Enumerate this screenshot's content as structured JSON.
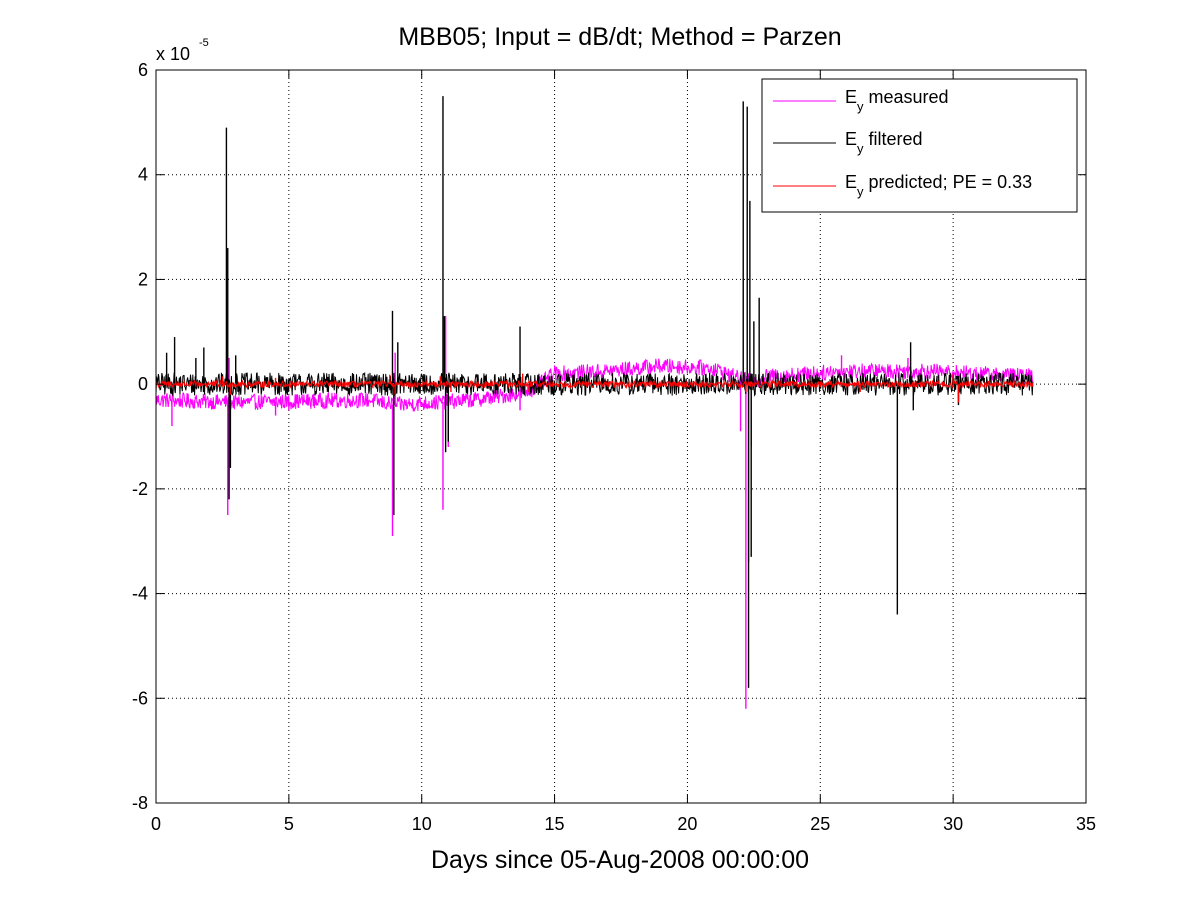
{
  "chart_data": {
    "type": "line",
    "title": "MBB05; Input = dB/dt; Method = Parzen",
    "xlabel": "Days since 05-Aug-2008 00:00:00",
    "ylabel": "",
    "xlim": [
      0,
      35
    ],
    "ylim": [
      -8,
      6
    ],
    "xticks": [
      0,
      5,
      10,
      15,
      20,
      25,
      30,
      35
    ],
    "xtick_labels": [
      "0",
      "5",
      "10",
      "15",
      "20",
      "25",
      "30",
      "35"
    ],
    "yticks": [
      -8,
      -6,
      -4,
      -2,
      0,
      2,
      4,
      6
    ],
    "ytick_labels": [
      "-8",
      "-6",
      "-4",
      "-2",
      "0",
      "2",
      "4",
      "6"
    ],
    "y_multiplier": {
      "base": "x 10",
      "exponent": "-5"
    },
    "grid": true,
    "legend_position": "top-right",
    "series": [
      {
        "name": "E_y measured",
        "legend_main": "E",
        "legend_sub": "y",
        "legend_rest": " measured",
        "color": "#ff00ff",
        "baseline": [
          [
            0,
            -0.3
          ],
          [
            3,
            -0.35
          ],
          [
            8,
            -0.3
          ],
          [
            9,
            -0.4
          ],
          [
            12,
            -0.3
          ],
          [
            14,
            -0.15
          ],
          [
            15,
            0.2
          ],
          [
            17,
            0.25
          ],
          [
            19,
            0.35
          ],
          [
            21,
            0.3
          ],
          [
            22,
            0.1
          ],
          [
            22.5,
            0.05
          ],
          [
            23,
            0.15
          ],
          [
            26,
            0.25
          ],
          [
            29,
            0.25
          ],
          [
            33,
            0.15
          ]
        ],
        "noise": 0.15,
        "spikes": [
          [
            0.6,
            -0.8
          ],
          [
            2.7,
            -2.5
          ],
          [
            2.75,
            0.5
          ],
          [
            4.5,
            -0.6
          ],
          [
            5.0,
            -0.5
          ],
          [
            8.9,
            -2.9
          ],
          [
            9.0,
            0.6
          ],
          [
            10.8,
            -2.4
          ],
          [
            10.9,
            1.3
          ],
          [
            11.0,
            -1.2
          ],
          [
            13.7,
            -0.5
          ],
          [
            22.0,
            -0.9
          ],
          [
            22.2,
            -6.2
          ],
          [
            22.3,
            -3.4
          ],
          [
            22.4,
            -1.2
          ],
          [
            25.8,
            0.55
          ],
          [
            28.3,
            0.5
          ],
          [
            30.2,
            -0.3
          ]
        ]
      },
      {
        "name": "E_y filtered",
        "legend_main": "E",
        "legend_sub": "y",
        "legend_rest": " filtered",
        "color": "#000000",
        "baseline": [
          [
            0,
            0
          ],
          [
            33,
            0
          ]
        ],
        "noise": 0.22,
        "spikes": [
          [
            0.4,
            0.6
          ],
          [
            0.7,
            0.9
          ],
          [
            1.5,
            0.5
          ],
          [
            1.8,
            0.7
          ],
          [
            2.65,
            4.9
          ],
          [
            2.7,
            2.6
          ],
          [
            2.75,
            -2.2
          ],
          [
            2.8,
            -1.6
          ],
          [
            3.0,
            0.55
          ],
          [
            8.9,
            1.4
          ],
          [
            8.95,
            -2.5
          ],
          [
            9.1,
            0.8
          ],
          [
            10.8,
            5.5
          ],
          [
            10.85,
            1.3
          ],
          [
            10.9,
            -1.3
          ],
          [
            11.0,
            -1.1
          ],
          [
            13.7,
            1.1
          ],
          [
            22.1,
            5.4
          ],
          [
            22.25,
            5.3
          ],
          [
            22.3,
            -5.8
          ],
          [
            22.35,
            3.5
          ],
          [
            22.4,
            -3.3
          ],
          [
            22.5,
            1.2
          ],
          [
            22.7,
            1.65
          ],
          [
            27.9,
            -4.4
          ],
          [
            28.4,
            0.8
          ],
          [
            28.5,
            -0.5
          ],
          [
            30.2,
            -0.4
          ]
        ]
      },
      {
        "name": "E_y predicted; PE = 0.33",
        "legend_main": "E",
        "legend_sub": "y",
        "legend_rest": " predicted; PE = 0.33",
        "color": "#ff0000",
        "baseline": [
          [
            0,
            0
          ],
          [
            33,
            0
          ]
        ],
        "noise": 0.06,
        "spikes": [
          [
            2.5,
            0.15
          ],
          [
            2.8,
            -0.2
          ],
          [
            4.5,
            0.12
          ],
          [
            8.8,
            0.18
          ],
          [
            9.0,
            -0.2
          ],
          [
            10.7,
            0.15
          ],
          [
            11.1,
            -0.15
          ],
          [
            13.8,
            0.2
          ],
          [
            14.0,
            -0.15
          ],
          [
            22.2,
            -0.15
          ],
          [
            26.5,
            -0.15
          ],
          [
            30.0,
            0.2
          ],
          [
            30.2,
            -0.35
          ]
        ]
      }
    ],
    "x_end": 33
  }
}
